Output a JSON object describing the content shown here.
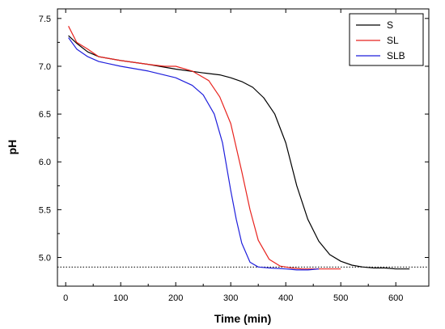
{
  "chart_data": {
    "type": "line",
    "title": "",
    "xlabel": "Time (min)",
    "ylabel": "pH",
    "xlim": [
      -15,
      660
    ],
    "ylim": [
      4.7,
      7.6
    ],
    "xticks": [
      0,
      100,
      200,
      300,
      400,
      500,
      600
    ],
    "xtick_labels": [
      "0",
      "100",
      "200",
      "300",
      "400",
      "500",
      "600"
    ],
    "yticks": [
      5.0,
      5.5,
      6.0,
      6.5,
      7.0,
      7.5
    ],
    "ytick_labels": [
      "5.0",
      "5.5",
      "6.0",
      "6.5",
      "7.0",
      "7.5"
    ],
    "grid": false,
    "legend_position": "top-right",
    "reference_line": {
      "y": 4.9,
      "style": "dotted",
      "color": "#000000"
    },
    "series": [
      {
        "name": "S",
        "color": "#000000",
        "x": [
          5,
          20,
          40,
          60,
          100,
          150,
          200,
          250,
          280,
          300,
          320,
          340,
          360,
          380,
          400,
          420,
          440,
          460,
          480,
          500,
          520,
          540,
          560,
          580,
          600,
          625
        ],
        "y": [
          7.32,
          7.24,
          7.15,
          7.1,
          7.06,
          7.02,
          6.97,
          6.93,
          6.91,
          6.88,
          6.84,
          6.78,
          6.67,
          6.5,
          6.2,
          5.75,
          5.4,
          5.17,
          5.03,
          4.96,
          4.92,
          4.9,
          4.89,
          4.89,
          4.88,
          4.88
        ]
      },
      {
        "name": "SL",
        "color": "#e8231e",
        "x": [
          5,
          20,
          40,
          60,
          100,
          150,
          180,
          200,
          230,
          260,
          280,
          300,
          320,
          335,
          350,
          370,
          390,
          410,
          430,
          450,
          470,
          500
        ],
        "y": [
          7.42,
          7.25,
          7.18,
          7.1,
          7.06,
          7.02,
          7.0,
          7.0,
          6.95,
          6.85,
          6.68,
          6.4,
          5.9,
          5.5,
          5.18,
          4.98,
          4.91,
          4.89,
          4.88,
          4.88,
          4.88,
          4.88
        ]
      },
      {
        "name": "SLB",
        "color": "#1f1fdc",
        "x": [
          5,
          20,
          40,
          60,
          100,
          150,
          200,
          230,
          250,
          270,
          285,
          300,
          310,
          320,
          335,
          350,
          370,
          400,
          420,
          440,
          460
        ],
        "y": [
          7.3,
          7.18,
          7.1,
          7.05,
          7.0,
          6.95,
          6.88,
          6.8,
          6.7,
          6.5,
          6.2,
          5.7,
          5.4,
          5.15,
          4.95,
          4.9,
          4.89,
          4.88,
          4.87,
          4.87,
          4.88
        ]
      }
    ]
  }
}
